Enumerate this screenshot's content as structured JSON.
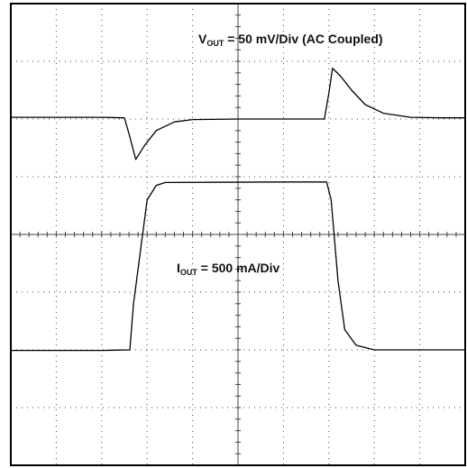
{
  "chart_data": {
    "type": "line",
    "xlabel": "",
    "ylabel": "",
    "divisions": {
      "x": 10,
      "y": 8
    },
    "minor_ticks_per_division": 5,
    "grid": true,
    "xlim": [
      0,
      10
    ],
    "ylim": [
      0,
      8
    ],
    "series": [
      {
        "name": "VOUT",
        "label": {
          "main": "V",
          "sub": "OUT",
          "rest": " = 50 mV/Div (AC Coupled)"
        },
        "x": [
          0,
          2.0,
          2.5,
          2.6,
          2.75,
          2.95,
          3.2,
          3.6,
          4.0,
          5.0,
          6.0,
          6.9,
          7.0,
          7.08,
          7.25,
          7.5,
          7.8,
          8.2,
          8.8,
          9.5,
          10.0
        ],
        "y": [
          6.03,
          6.03,
          6.02,
          5.75,
          5.3,
          5.55,
          5.8,
          5.95,
          5.99,
          6.0,
          6.0,
          6.0,
          6.45,
          6.88,
          6.75,
          6.5,
          6.25,
          6.1,
          6.03,
          6.02,
          6.02
        ]
      },
      {
        "name": "IOUT",
        "label": {
          "main": "I",
          "sub": "OUT",
          "rest": " = 500 mA/Div"
        },
        "x": [
          0,
          2.0,
          2.62,
          2.7,
          3.0,
          3.2,
          3.4,
          6.0,
          6.95,
          7.05,
          7.2,
          7.35,
          7.6,
          8.0,
          10.0
        ],
        "y": [
          1.99,
          1.99,
          2.0,
          2.8,
          4.6,
          4.85,
          4.9,
          4.91,
          4.91,
          4.6,
          3.2,
          2.35,
          2.08,
          2.0,
          2.0
        ]
      }
    ]
  }
}
